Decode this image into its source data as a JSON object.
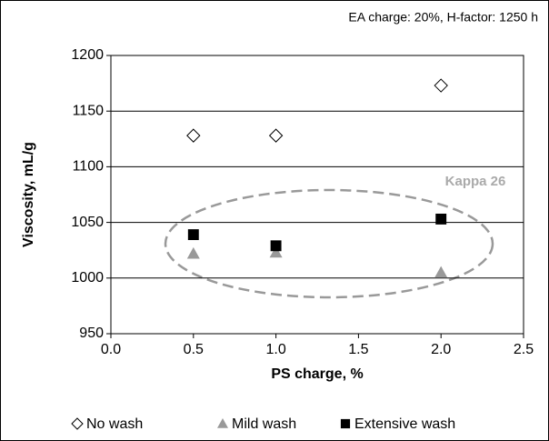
{
  "chart_data": {
    "type": "scatter",
    "annotations": [
      "EA charge: 20%, H-factor: 1250 h",
      "Kappa 26"
    ],
    "x_label": "PS charge, %",
    "y_label": "Viscosity, mL/g",
    "series": [
      {
        "name": "No wash",
        "marker": "diamond",
        "color": "#ffffff",
        "x": [
          0.5,
          1.0,
          2.0
        ],
        "values": [
          1128,
          1128,
          1173
        ]
      },
      {
        "name": "Mild wash",
        "marker": "triangle",
        "color": "#999999",
        "x": [
          0.5,
          1.0,
          2.0
        ],
        "values": [
          1022,
          1023,
          1005
        ]
      },
      {
        "name": "Extensive wash",
        "marker": "square",
        "color": "#000000",
        "x": [
          0.5,
          1.0,
          2.0
        ],
        "values": [
          1039,
          1029,
          1053
        ]
      }
    ],
    "xlim": [
      0,
      2.5
    ],
    "xticks": [
      {
        "value": 0,
        "label": "0.0"
      },
      0.5,
      {
        "value": 1,
        "label": "1.0"
      },
      1.5,
      {
        "value": 2,
        "label": "2.0"
      },
      2.5
    ],
    "ylim": [
      950,
      1200
    ],
    "yticks": [
      950,
      1000,
      1050,
      1100,
      1150,
      1200
    ],
    "grid": true
  }
}
